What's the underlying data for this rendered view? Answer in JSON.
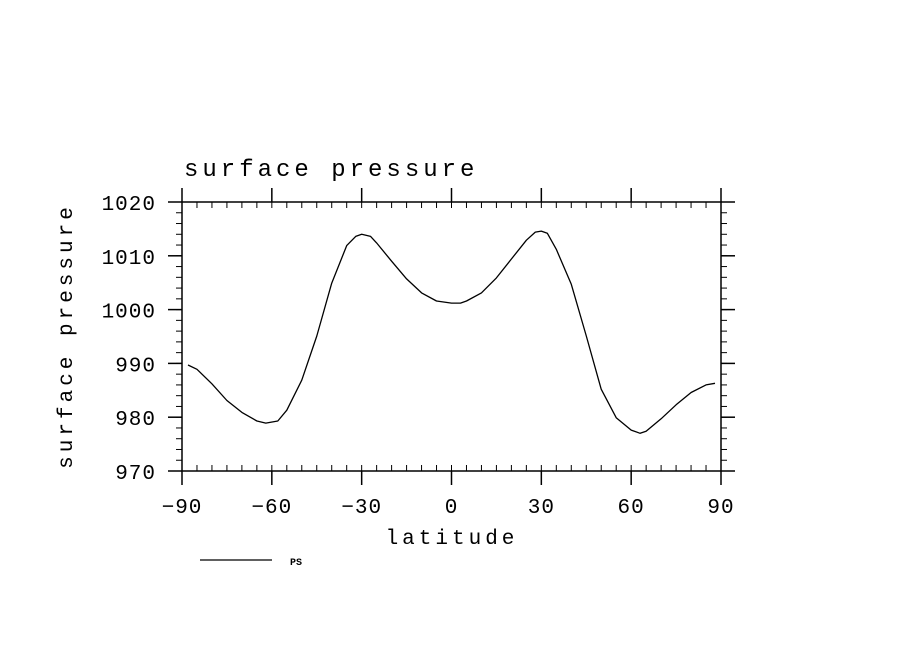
{
  "chart_data": {
    "type": "line",
    "title": "surface pressure",
    "xlabel": "latitude",
    "ylabel": "surface pressure",
    "xlim": [
      -90,
      90
    ],
    "ylim": [
      970,
      1020
    ],
    "xticks": [
      -90,
      -60,
      -30,
      0,
      30,
      60,
      90
    ],
    "xtick_labels": [
      "−90",
      "−60",
      "−30",
      "0",
      "30",
      "60",
      "90"
    ],
    "yticks": [
      970,
      980,
      990,
      1000,
      1010,
      1020
    ],
    "ytick_labels": [
      "970",
      "980",
      "990",
      "1000",
      "1010",
      "1020"
    ],
    "grid": false,
    "legend": "bottom-left",
    "series": [
      {
        "name": "PS",
        "color": "#000000",
        "x": [
          -88,
          -85,
          -80,
          -75,
          -70,
          -65,
          -62,
          -58,
          -55,
          -50,
          -45,
          -40,
          -35,
          -32,
          -30,
          -27,
          -25,
          -20,
          -15,
          -10,
          -5,
          0,
          3,
          5,
          10,
          15,
          20,
          25,
          28,
          30,
          32,
          35,
          40,
          45,
          50,
          55,
          60,
          63,
          65,
          70,
          75,
          80,
          85,
          88
        ],
        "values": [
          989.7,
          988.9,
          986.2,
          983.1,
          980.9,
          979.3,
          978.9,
          979.3,
          981.3,
          986.9,
          995.1,
          1004.9,
          1011.9,
          1013.6,
          1014.0,
          1013.6,
          1012.4,
          1009.0,
          1005.7,
          1003.1,
          1001.6,
          1001.2,
          1001.2,
          1001.6,
          1003.1,
          1005.9,
          1009.4,
          1012.9,
          1014.4,
          1014.6,
          1014.2,
          1011.2,
          1004.7,
          995.1,
          985.2,
          979.9,
          977.6,
          977.0,
          977.4,
          979.7,
          982.3,
          984.6,
          986.0,
          986.3
        ]
      }
    ]
  }
}
